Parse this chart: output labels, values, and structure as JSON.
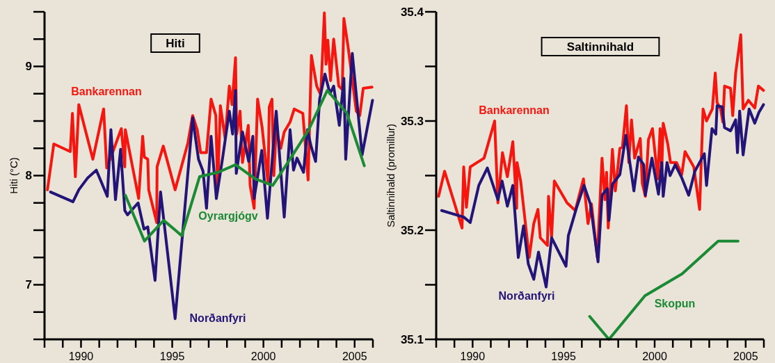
{
  "chart_data": [
    {
      "type": "line",
      "title": "Hiti",
      "ylabel": "Hiti (°C)",
      "xlim": [
        1988,
        2006
      ],
      "ylim": [
        6.5,
        9.5
      ],
      "xticks": [
        {
          "value": 1988,
          "label": null
        },
        {
          "value": 1989,
          "label": null
        },
        1990,
        {
          "value": 1991,
          "label": null
        },
        {
          "value": 1992,
          "label": null
        },
        {
          "value": 1993,
          "label": null
        },
        {
          "value": 1994,
          "label": null
        },
        1995,
        {
          "value": 1996,
          "label": null
        },
        {
          "value": 1997,
          "label": null
        },
        {
          "value": 1998,
          "label": null
        },
        {
          "value": 1999,
          "label": null
        },
        2000,
        {
          "value": 2001,
          "label": null
        },
        {
          "value": 2002,
          "label": null
        },
        {
          "value": 2003,
          "label": null
        },
        {
          "value": 2004,
          "label": null
        },
        2005,
        {
          "value": 2006,
          "label": null
        }
      ],
      "yticks": [
        {
          "value": 6.5,
          "label": null
        },
        {
          "value": 6.75,
          "label": null
        },
        7,
        {
          "value": 7.25,
          "label": null
        },
        {
          "value": 7.5,
          "label": null
        },
        {
          "value": 7.75,
          "label": null
        },
        8,
        {
          "value": 8.25,
          "label": null
        },
        {
          "value": 8.5,
          "label": null
        },
        {
          "value": 8.75,
          "label": null
        },
        9,
        {
          "value": 9.25,
          "label": null
        },
        {
          "value": 9.5,
          "label": null
        }
      ],
      "legend": false,
      "grid": false,
      "series": [
        {
          "name": "Bankarennan",
          "color": "#f5160f",
          "x": [
            1988.16,
            1988.51,
            1989.41,
            1989.53,
            1989.69,
            1989.88,
            1990.65,
            1991.24,
            1991.41,
            1991.64,
            1992.21,
            1992.4,
            1992.43,
            1993.16,
            1993.38,
            1993.47,
            1993.66,
            1993.71,
            1994.15,
            1994.17,
            1994.51,
            1995.16,
            1995.86,
            1996.12,
            1996.37,
            1996.56,
            1996.88,
            1997.13,
            1997.39,
            1997.49,
            1997.64,
            1997.9,
            1998.13,
            1998.28,
            1998.47,
            1998.53,
            1998.72,
            1998.85,
            1999.17,
            1999.27,
            1999.49,
            1999.68,
            1999.93,
            2000.25,
            2000.32,
            2000.47,
            2000.57,
            2000.7,
            2000.95,
            2001.14,
            2001.46,
            2001.69,
            2002.16,
            2002.45,
            2002.63,
            2002.92,
            2003.14,
            2003.34,
            2003.43,
            2003.53,
            2003.68,
            2003.85,
            2004.13,
            2004.32,
            2004.41,
            2004.64,
            2005.09,
            2005.28,
            2005.47,
            2005.95
          ],
          "values": [
            7.87,
            8.29,
            8.22,
            8.57,
            7.99,
            8.65,
            8.15,
            8.61,
            8.07,
            8.17,
            8.43,
            8.08,
            8.42,
            7.79,
            8.36,
            8.17,
            8.15,
            7.87,
            7.57,
            8.08,
            8.27,
            7.87,
            8.3,
            8.55,
            8.42,
            8.21,
            8.21,
            8.7,
            8.55,
            7.87,
            8.64,
            8.34,
            8.82,
            8.65,
            9.08,
            8.38,
            8.59,
            8.12,
            8.46,
            7.91,
            7.7,
            8.7,
            8.44,
            7.93,
            8.63,
            8.7,
            8,
            8.42,
            8.25,
            8.4,
            8.49,
            8.61,
            8.57,
            7.96,
            9.1,
            8.82,
            8.74,
            9.49,
            9.02,
            9.24,
            8.87,
            9.25,
            8.82,
            8.79,
            9.44,
            9.18,
            8.59,
            8.55,
            8.8,
            8.81
          ]
        },
        {
          "name": "Norðanfyri",
          "color": "#231477",
          "x": [
            1988.33,
            1989.56,
            1989.88,
            1990.37,
            1990.84,
            1991.44,
            1991.64,
            1991.89,
            1992.17,
            1992.4,
            1992.55,
            1993.13,
            1993.45,
            1993.66,
            1994.06,
            1994.36,
            1995.16,
            1995.8,
            1996.12,
            1996.44,
            1996.69,
            1996.88,
            1997.13,
            1997.42,
            1997.77,
            1998.13,
            1998.31,
            1998.47,
            1998.51,
            1998.85,
            1999.19,
            1999.42,
            1999.49,
            1999.91,
            2000.22,
            2000.7,
            2001.14,
            2001.46,
            2001.65,
            2001.84,
            2002.2,
            2002.41,
            2002.61,
            2002.86,
            2003.08,
            2003.37,
            2003.65,
            2003.85,
            2004.16,
            2004.41,
            2004.51,
            2004.87,
            2005.41,
            2005.98
          ],
          "values": [
            7.85,
            7.76,
            7.87,
            7.98,
            8.05,
            7.81,
            8.42,
            7.78,
            8.24,
            7.68,
            7.64,
            7.75,
            7.51,
            7.53,
            7.04,
            7.85,
            6.69,
            7.91,
            8.53,
            8.15,
            8.04,
            7.7,
            8.36,
            7.79,
            8.17,
            8.59,
            8.38,
            8.78,
            8.02,
            8.4,
            8.13,
            8.36,
            7.79,
            8.23,
            7.61,
            8.59,
            7.62,
            8.42,
            8.05,
            8.16,
            8.03,
            8.42,
            8.27,
            8.13,
            8.7,
            8.93,
            8.75,
            8.82,
            8.46,
            8.89,
            8.15,
            9.12,
            8.19,
            8.69
          ]
        },
        {
          "name": "Oyrargjógv",
          "color": "#1b8a35",
          "x": [
            1992.43,
            1993.48,
            1994.53,
            1995.52,
            1996.5,
            1997.52,
            1998.47,
            1999.55,
            2000.51,
            2001.46,
            2002.48,
            2003.5,
            2004.58,
            2005.53
          ],
          "values": [
            7.82,
            7.4,
            7.59,
            7.45,
            7.99,
            8.03,
            8.1,
            7.97,
            7.91,
            8.15,
            8.42,
            8.78,
            8.57,
            8.09
          ]
        }
      ]
    },
    {
      "type": "line",
      "title": "Saltinnihald",
      "ylabel": "Saltinnihald (promillur)",
      "xlim": [
        1988,
        2006
      ],
      "ylim": [
        35.1,
        35.4
      ],
      "xticks": [
        {
          "value": 1988,
          "label": null
        },
        {
          "value": 1989,
          "label": null
        },
        1990,
        {
          "value": 1991,
          "label": null
        },
        {
          "value": 1992,
          "label": null
        },
        {
          "value": 1993,
          "label": null
        },
        {
          "value": 1994,
          "label": null
        },
        1995,
        {
          "value": 1996,
          "label": null
        },
        {
          "value": 1997,
          "label": null
        },
        {
          "value": 1998,
          "label": null
        },
        {
          "value": 1999,
          "label": null
        },
        2000,
        {
          "value": 2001,
          "label": null
        },
        {
          "value": 2002,
          "label": null
        },
        {
          "value": 2003,
          "label": null
        },
        {
          "value": 2004,
          "label": null
        },
        2005,
        {
          "value": 2006,
          "label": null
        }
      ],
      "yticks": [
        35.1,
        {
          "value": 35.15,
          "label": null
        },
        35.2,
        {
          "value": 35.25,
          "label": null
        },
        35.3,
        {
          "value": 35.35,
          "label": null
        },
        35.4
      ],
      "legend": false,
      "grid": false,
      "series": [
        {
          "name": "Bankarennan",
          "color": "#f5160f",
          "x": [
            1988.13,
            1988.46,
            1989.42,
            1989.51,
            1989.66,
            1989.87,
            1990.63,
            1991.21,
            1991.39,
            1991.64,
            1991.91,
            1992.21,
            1992.42,
            1992.44,
            1992.64,
            1993.11,
            1993.36,
            1993.59,
            1993.72,
            1994.11,
            1994.17,
            1994.34,
            1994.49,
            1995.19,
            1995.64,
            1996.09,
            1996.34,
            1996.53,
            1996.85,
            1997.11,
            1997.27,
            1997.36,
            1997.45,
            1997.68,
            1997.84,
            1998.09,
            1998.23,
            1998.45,
            1998.58,
            1998.73,
            1998.9,
            1999.21,
            1999.32,
            1999.49,
            1999.66,
            1999.88,
            2000.17,
            2000.3,
            2000.39,
            2000.47,
            2000.72,
            2000.87,
            2001.2,
            2001.49,
            2001.67,
            2002.15,
            2002.47,
            2002.66,
            2002.85,
            2003.17,
            2003.33,
            2003.43,
            2003.62,
            2003.75,
            2003.84,
            2004.17,
            2004.29,
            2004.45,
            2004.73,
            2004.86,
            2005.15,
            2005.5,
            2005.7,
            2005.98
          ],
          "values": [
            35.231,
            35.254,
            35.202,
            35.258,
            35.221,
            35.258,
            35.266,
            35.3,
            35.225,
            35.271,
            35.249,
            35.281,
            35.22,
            35.262,
            35.245,
            35.175,
            35.206,
            35.219,
            35.193,
            35.186,
            35.231,
            35.194,
            35.245,
            35.225,
            35.218,
            35.247,
            35.206,
            35.224,
            35.175,
            35.266,
            35.228,
            35.253,
            35.202,
            35.274,
            35.236,
            35.275,
            35.276,
            35.314,
            35.262,
            35.301,
            35.266,
            35.284,
            35.243,
            35.231,
            35.283,
            35.293,
            35.247,
            35.293,
            35.254,
            35.298,
            35.279,
            35.262,
            35.262,
            35.251,
            35.272,
            35.258,
            35.219,
            35.311,
            35.3,
            35.311,
            35.344,
            35.317,
            35.311,
            35.299,
            35.332,
            35.33,
            35.305,
            35.344,
            35.379,
            35.311,
            35.319,
            35.312,
            35.332,
            35.328
          ]
        },
        {
          "name": "Norðanfyri",
          "color": "#231477",
          "x": [
            1988.3,
            1989.51,
            1989.87,
            1990.34,
            1990.81,
            1991.39,
            1991.62,
            1991.91,
            1992.21,
            1992.51,
            1992.8,
            1993.06,
            1993.36,
            1993.62,
            1994.04,
            1994.34,
            1995.13,
            1995.26,
            1995.7,
            1996.12,
            1996.47,
            1996.89,
            1997.11,
            1997.4,
            1997.49,
            1997.68,
            1998.09,
            1998.42,
            1998.86,
            1999.11,
            1999.4,
            1999.49,
            1999.85,
            2000.21,
            2000.39,
            2000.47,
            2000.68,
            2000.85,
            2001.13,
            2001.49,
            2001.87,
            2002.21,
            2002.73,
            2002.85,
            2003.15,
            2003.36,
            2003.43,
            2003.71,
            2003.84,
            2004.17,
            2004.45,
            2004.55,
            2004.67,
            2004.86,
            2005.19,
            2005.5,
            2005.73,
            2005.98
          ],
          "values": [
            35.218,
            35.212,
            35.207,
            35.241,
            35.257,
            35.228,
            35.245,
            35.222,
            35.241,
            35.175,
            35.204,
            35.169,
            35.155,
            35.18,
            35.148,
            35.193,
            35.167,
            35.195,
            35.22,
            35.241,
            35.224,
            35.171,
            35.232,
            35.238,
            35.209,
            35.242,
            35.251,
            35.287,
            35.236,
            35.267,
            35.26,
            35.232,
            35.266,
            35.233,
            35.262,
            35.231,
            35.262,
            35.25,
            35.26,
            35.248,
            35.232,
            35.254,
            35.27,
            35.241,
            35.293,
            35.288,
            35.314,
            35.313,
            35.294,
            35.291,
            35.301,
            35.271,
            35.309,
            35.269,
            35.311,
            35.298,
            35.308,
            35.315
          ]
        },
        {
          "name": "Skopun",
          "color": "#1b8a35",
          "x": [
            1996.43,
            1997.49,
            1999.47,
            2001.51,
            2003.49,
            2004.58
          ],
          "values": [
            35.121,
            35.1,
            35.14,
            35.16,
            35.19,
            35.19
          ]
        }
      ]
    }
  ]
}
